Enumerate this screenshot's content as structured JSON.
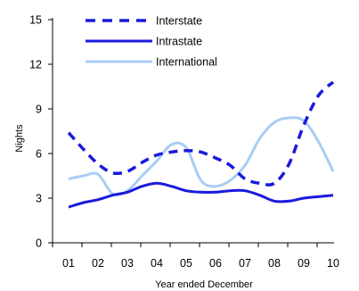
{
  "chart_data": {
    "type": "line",
    "title": "",
    "xlabel": "Year ended December",
    "ylabel": "Nights",
    "categories": [
      "01",
      "02",
      "03",
      "04",
      "05",
      "06",
      "07",
      "08",
      "09",
      "10"
    ],
    "ylim": [
      0,
      15
    ],
    "yticks": [
      "0",
      "3",
      "6",
      "9",
      "12",
      "15"
    ],
    "grid": false,
    "legend_position": "top-left",
    "series": [
      {
        "name": "Interstate",
        "color": "#1a1adc",
        "style": "dashed",
        "x": [
          0,
          0.5,
          1,
          1.5,
          2,
          2.5,
          3,
          3.5,
          4,
          4.5,
          5,
          5.5,
          6,
          6.5,
          7,
          7.5,
          8,
          8.5,
          9
        ],
        "y": [
          7.4,
          6.3,
          5.3,
          4.7,
          4.8,
          5.4,
          5.9,
          6.1,
          6.2,
          6.1,
          5.7,
          5.2,
          4.3,
          4.0,
          4.0,
          5.3,
          7.9,
          9.9,
          10.8
        ]
      },
      {
        "name": "Intrastate",
        "color": "#1a1adc",
        "style": "solid",
        "x": [
          0,
          0.5,
          1,
          1.5,
          2,
          2.5,
          3,
          3.5,
          4,
          4.5,
          5,
          5.5,
          6,
          6.5,
          7,
          7.5,
          8,
          8.5,
          9
        ],
        "y": [
          2.4,
          2.7,
          2.9,
          3.2,
          3.4,
          3.8,
          4.0,
          3.8,
          3.5,
          3.4,
          3.4,
          3.5,
          3.5,
          3.2,
          2.8,
          2.8,
          3.0,
          3.1,
          3.2
        ]
      },
      {
        "name": "International",
        "color": "#a9cdf5",
        "style": "solid",
        "x": [
          0,
          0.5,
          1,
          1.5,
          2,
          2.5,
          3,
          3.5,
          4,
          4.5,
          5,
          5.5,
          6,
          6.5,
          7,
          7.5,
          8,
          8.5,
          9
        ],
        "y": [
          4.3,
          4.5,
          4.6,
          3.3,
          3.5,
          4.5,
          5.5,
          6.6,
          6.4,
          4.2,
          3.8,
          4.2,
          5.2,
          7.0,
          8.1,
          8.4,
          8.2,
          6.8,
          4.8
        ]
      }
    ]
  }
}
